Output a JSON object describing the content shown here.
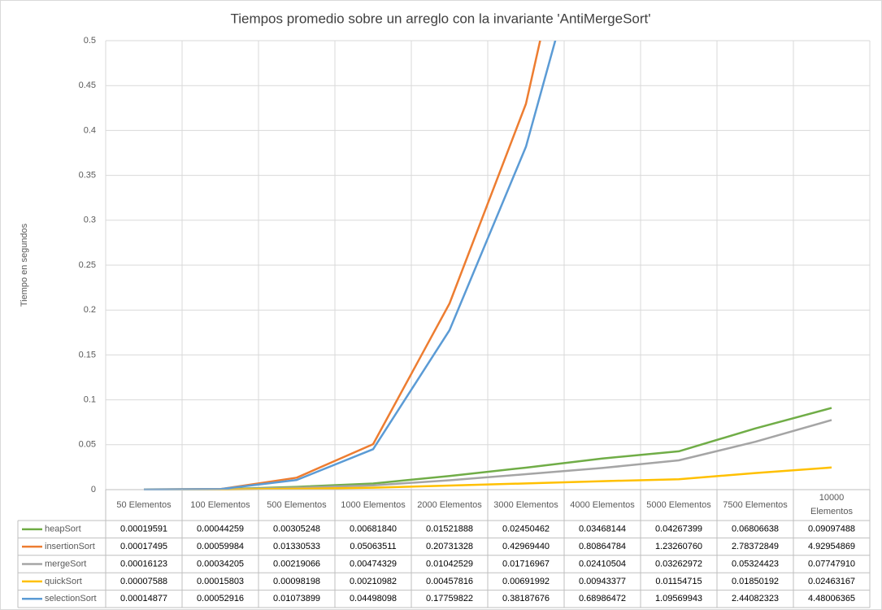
{
  "chart_data": {
    "type": "line",
    "title": "Tiempos promedio sobre un  arreglo con la invariante 'AntiMergeSort'",
    "y_label": "Tiempo en segundos",
    "categories": [
      "50 Elementos",
      "100 Elementos",
      "500 Elementos",
      "1000 Elementos",
      "2000 Elementos",
      "3000 Elementos",
      "4000 Elementos",
      "5000 Elementos",
      "7500 Elementos",
      "10000 Elementos"
    ],
    "ylim": [
      0,
      0.5
    ],
    "yticks": [
      0,
      0.05,
      0.1,
      0.15,
      0.2,
      0.25,
      0.3,
      0.35,
      0.4,
      0.45,
      0.5
    ],
    "grid": true,
    "series": [
      {
        "name": "heapSort",
        "color": "#70ad47",
        "values": [
          0.00019591,
          0.00044259,
          0.00305248,
          0.0068184,
          0.01521888,
          0.02450462,
          0.03468144,
          0.04267399,
          0.06806638,
          0.09097488
        ],
        "value_labels": [
          "0.00019591",
          "0.00044259",
          "0.00305248",
          "0.00681840",
          "0.01521888",
          "0.02450462",
          "0.03468144",
          "0.04267399",
          "0.06806638",
          "0.09097488"
        ]
      },
      {
        "name": "insertionSort",
        "color": "#ed7d31",
        "values": [
          0.00017495,
          0.00059984,
          0.01330533,
          0.05063511,
          0.20731328,
          0.4296944,
          0.80864784,
          1.2326076,
          2.78372849,
          4.92954869
        ],
        "value_labels": [
          "0.00017495",
          "0.00059984",
          "0.01330533",
          "0.05063511",
          "0.20731328",
          "0.42969440",
          "0.80864784",
          "1.23260760",
          "2.78372849",
          "4.92954869"
        ]
      },
      {
        "name": "mergeSort",
        "color": "#a5a5a5",
        "values": [
          0.00016123,
          0.00034205,
          0.00219066,
          0.00474329,
          0.01042529,
          0.01716967,
          0.02410504,
          0.03262972,
          0.05324423,
          0.0774791
        ],
        "value_labels": [
          "0.00016123",
          "0.00034205",
          "0.00219066",
          "0.00474329",
          "0.01042529",
          "0.01716967",
          "0.02410504",
          "0.03262972",
          "0.05324423",
          "0.07747910"
        ]
      },
      {
        "name": "quickSort",
        "color": "#ffc000",
        "values": [
          7.588e-05,
          0.00015803,
          0.00098198,
          0.00210982,
          0.00457816,
          0.00691992,
          0.00943377,
          0.01154715,
          0.01850192,
          0.02463167
        ],
        "value_labels": [
          "0.00007588",
          "0.00015803",
          "0.00098198",
          "0.00210982",
          "0.00457816",
          "0.00691992",
          "0.00943377",
          "0.01154715",
          "0.01850192",
          "0.02463167"
        ]
      },
      {
        "name": "selectionSort",
        "color": "#5b9bd5",
        "values": [
          0.00014877,
          0.00052916,
          0.01073899,
          0.04498098,
          0.17759822,
          0.38187676,
          0.68986472,
          1.09569943,
          2.44082323,
          4.48006365
        ],
        "value_labels": [
          "0.00014877",
          "0.00052916",
          "0.01073899",
          "0.04498098",
          "0.17759822",
          "0.38187676",
          "0.68986472",
          "1.09569943",
          "2.44082323",
          "4.48006365"
        ]
      }
    ]
  }
}
